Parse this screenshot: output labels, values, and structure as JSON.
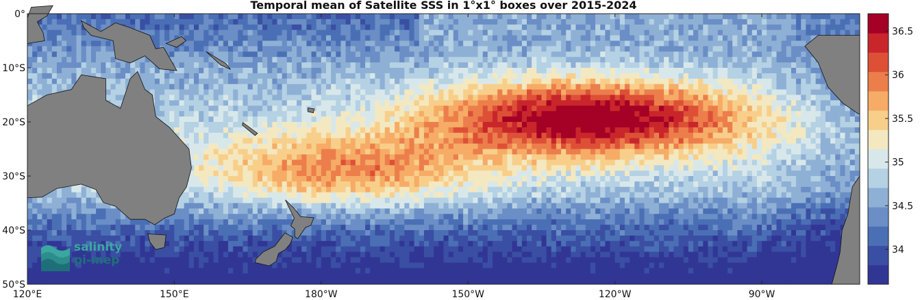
{
  "chart_data": {
    "type": "heatmap",
    "title": "Temporal mean of Satellite SSS in 1°x1° boxes over 2015-2024",
    "x_ticks": [
      "120°E",
      "150°E",
      "180°W",
      "150°W",
      "120°W",
      "90°W"
    ],
    "y_ticks": [
      "0°",
      "10°S",
      "20°S",
      "30°S",
      "40°S",
      "50°S"
    ],
    "colorbar": {
      "ticks": [
        "36.5",
        "36",
        "35.5",
        "35",
        "34.5",
        "34"
      ],
      "range": [
        33.6,
        36.7
      ],
      "colors": [
        "#313695",
        "#3a4fa3",
        "#4a6fb5",
        "#6a8ec5",
        "#8fb0d5",
        "#b5d1e4",
        "#d8e8ea",
        "#f3e8c0",
        "#f8cf8a",
        "#f6ac66",
        "#ec7e4c",
        "#dd5036",
        "#c8262b",
        "#a50026"
      ]
    },
    "colors": {
      "land": "#808080",
      "coast": "#111111",
      "nodata": "#ffffff"
    },
    "logo": {
      "line1": "salinity",
      "line2": "pi-mep"
    }
  }
}
